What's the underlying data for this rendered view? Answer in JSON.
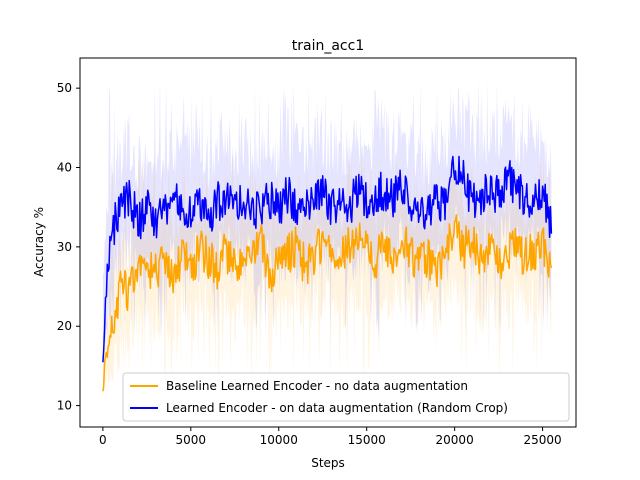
{
  "chart_data": {
    "type": "line",
    "title": "train_acc1",
    "xlabel": "Steps",
    "ylabel": "Accuracy %",
    "xlim": [
      -1300,
      26900
    ],
    "ylim": [
      7.3,
      53.8
    ],
    "xticks": [
      0,
      5000,
      10000,
      15000,
      20000,
      25000
    ],
    "xtick_labels": [
      "0",
      "5000",
      "10000",
      "15000",
      "20000",
      "25000"
    ],
    "yticks": [
      10,
      20,
      30,
      40,
      50
    ],
    "ytick_labels": [
      "10",
      "20",
      "30",
      "40",
      "50"
    ],
    "grid": false,
    "legend_position": "lower-right",
    "series": [
      {
        "name": "Baseline Learned Encoder - no data augmentation",
        "color": "#ffa500",
        "band_min": 13,
        "band_max": 42,
        "x": [
          0,
          200,
          400,
          700,
          1000,
          1500,
          2000,
          2500,
          3000,
          3500,
          4000,
          4500,
          5000,
          5500,
          6000,
          6500,
          7000,
          7500,
          8000,
          8500,
          9000,
          9500,
          10000,
          10500,
          11000,
          11500,
          12000,
          12500,
          13000,
          13500,
          14000,
          14500,
          15000,
          15500,
          16000,
          16500,
          17000,
          17500,
          18000,
          18500,
          19000,
          19500,
          20000,
          20500,
          21000,
          21500,
          22000,
          22500,
          23000,
          23500,
          24000,
          24500,
          25000,
          25500
        ],
        "values": [
          12.5,
          16.5,
          19.5,
          22,
          25,
          24,
          27,
          26.5,
          27,
          28,
          26,
          29,
          27,
          30,
          28.5,
          27,
          29.5,
          27,
          29,
          28,
          30.5,
          26.5,
          28.5,
          29,
          30,
          27.5,
          29,
          30.5,
          29,
          28,
          30.5,
          31,
          29.5,
          28.5,
          30,
          29,
          31,
          29,
          28,
          28.5,
          27,
          29,
          32.5,
          29.5,
          31.5,
          28.5,
          30,
          27.5,
          29,
          30,
          28.5,
          29.5,
          30,
          28
        ]
      },
      {
        "name": "Learned Encoder - on data augmentation (Random Crop)",
        "color": "#0000ff",
        "band_min": 18,
        "band_max": 51,
        "x": [
          0,
          200,
          400,
          700,
          1000,
          1500,
          2000,
          2500,
          3000,
          3500,
          4000,
          4500,
          5000,
          5500,
          6000,
          6500,
          7000,
          7500,
          8000,
          8500,
          9000,
          9500,
          10000,
          10500,
          11000,
          11500,
          12000,
          12500,
          13000,
          13500,
          14000,
          14500,
          15000,
          15500,
          16000,
          16500,
          17000,
          17500,
          18000,
          18500,
          19000,
          19500,
          20000,
          20500,
          21000,
          21500,
          22000,
          22500,
          23000,
          23500,
          24000,
          24500,
          25000,
          25500
        ],
        "values": [
          16,
          25,
          30,
          33,
          35,
          36.5,
          33,
          35,
          33.5,
          34,
          36,
          35,
          35,
          36,
          33.5,
          35.5,
          36.5,
          35,
          36,
          35,
          34.5,
          36,
          35,
          36.5,
          35.5,
          34.5,
          36,
          36.5,
          35,
          35.5,
          35,
          37,
          35.5,
          36.5,
          37,
          36,
          37.5,
          35.5,
          34,
          34.5,
          36,
          35,
          40,
          38.5,
          36,
          36.5,
          37,
          36.5,
          39,
          37,
          36,
          36.5,
          37,
          33
        ]
      }
    ]
  }
}
